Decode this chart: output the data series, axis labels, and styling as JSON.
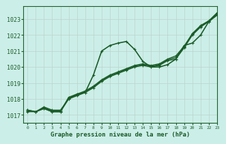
{
  "title": "Graphe pression niveau de la mer (hPa)",
  "bg_color": "#cceee8",
  "plot_bg_color": "#cceee8",
  "line_color": "#1a5c28",
  "grid_color": "#b8d4cc",
  "xlim": [
    -0.5,
    23
  ],
  "ylim": [
    1016.5,
    1023.8
  ],
  "yticks": [
    1017,
    1018,
    1019,
    1020,
    1021,
    1022,
    1023
  ],
  "xticks": [
    0,
    1,
    2,
    3,
    4,
    5,
    6,
    7,
    8,
    9,
    10,
    11,
    12,
    13,
    14,
    15,
    16,
    17,
    18,
    19,
    20,
    21,
    22,
    23
  ],
  "series": [
    {
      "comment": "line1: steady gradual rise - no marker (or small +)",
      "x": [
        0,
        1,
        2,
        3,
        4,
        5,
        6,
        7,
        8,
        9,
        10,
        11,
        12,
        13,
        14,
        15,
        16,
        17,
        18,
        19,
        20,
        21,
        22,
        23
      ],
      "y": [
        1017.3,
        1017.2,
        1017.5,
        1017.3,
        1017.3,
        1018.0,
        1018.3,
        1018.5,
        1018.8,
        1019.2,
        1019.5,
        1019.7,
        1019.9,
        1020.1,
        1020.2,
        1020.1,
        1020.2,
        1020.5,
        1020.7,
        1021.3,
        1022.1,
        1022.6,
        1022.9,
        1023.4
      ],
      "marker": "+",
      "markersize": 3.5,
      "linewidth": 1.0
    },
    {
      "comment": "line2: slightly different steady rise",
      "x": [
        0,
        1,
        2,
        3,
        4,
        5,
        6,
        7,
        8,
        9,
        10,
        11,
        12,
        13,
        14,
        15,
        16,
        17,
        18,
        19,
        20,
        21,
        22,
        23
      ],
      "y": [
        1017.2,
        1017.2,
        1017.4,
        1017.2,
        1017.2,
        1018.0,
        1018.2,
        1018.4,
        1018.7,
        1019.1,
        1019.4,
        1019.6,
        1019.8,
        1020.0,
        1020.1,
        1020.0,
        1020.1,
        1020.4,
        1020.5,
        1021.2,
        1022.0,
        1022.5,
        1022.85,
        1023.3
      ],
      "marker": "+",
      "markersize": 3.5,
      "linewidth": 1.0
    },
    {
      "comment": "line3: another steady rise parallel",
      "x": [
        0,
        1,
        2,
        3,
        4,
        5,
        6,
        7,
        8,
        9,
        10,
        11,
        12,
        13,
        14,
        15,
        16,
        17,
        18,
        19,
        20,
        21,
        22,
        23
      ],
      "y": [
        1017.25,
        1017.2,
        1017.45,
        1017.25,
        1017.25,
        1018.05,
        1018.25,
        1018.45,
        1018.75,
        1019.15,
        1019.45,
        1019.65,
        1019.85,
        1020.05,
        1020.15,
        1020.05,
        1020.15,
        1020.45,
        1020.6,
        1021.25,
        1022.05,
        1022.55,
        1022.88,
        1023.35
      ],
      "marker": "+",
      "markersize": 3.5,
      "linewidth": 1.0
    },
    {
      "comment": "line4: peaked line - rises steeply then falls then rises again",
      "x": [
        0,
        1,
        2,
        3,
        4,
        5,
        6,
        7,
        8,
        9,
        10,
        11,
        12,
        13,
        14,
        15,
        16,
        17,
        18,
        19,
        20,
        21,
        22,
        23
      ],
      "y": [
        1017.3,
        1017.2,
        1017.4,
        1017.2,
        1017.2,
        1018.1,
        1018.3,
        1018.4,
        1019.5,
        1021.0,
        1021.35,
        1021.5,
        1021.6,
        1021.1,
        1020.35,
        1020.0,
        1020.0,
        1020.15,
        1020.5,
        1021.35,
        1021.5,
        1022.0,
        1022.85,
        1023.25
      ],
      "marker": "+",
      "markersize": 3.5,
      "linewidth": 1.2
    }
  ]
}
